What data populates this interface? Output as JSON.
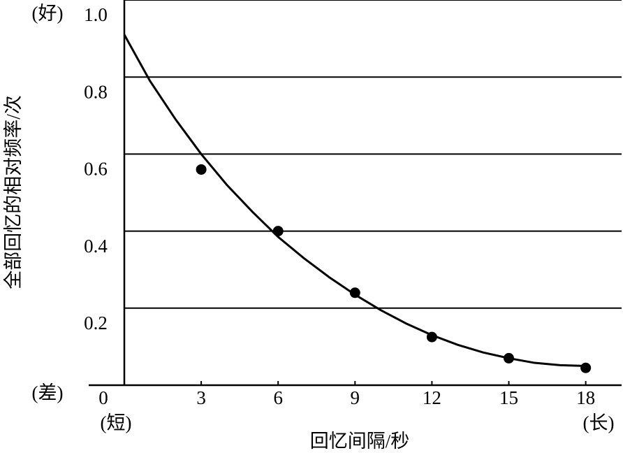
{
  "chart_data": {
    "type": "scatter",
    "xlabel": "回忆间隔/秒",
    "ylabel": "全部回忆的相对频率/次",
    "annotations": {
      "y_high": "(好)",
      "y_low": "(差)",
      "x_low": "(短)",
      "x_high": "(长)"
    },
    "x": [
      3,
      6,
      9,
      12,
      15,
      18
    ],
    "values": [
      0.56,
      0.4,
      0.24,
      0.125,
      0.07,
      0.045
    ],
    "color": "#000000",
    "curve": {
      "x": [
        0,
        1,
        2,
        3,
        4,
        5,
        6,
        7,
        8,
        9,
        10,
        11,
        12,
        13,
        14,
        15,
        16,
        17,
        18
      ],
      "values": [
        0.91,
        0.79,
        0.69,
        0.6,
        0.52,
        0.45,
        0.385,
        0.33,
        0.28,
        0.235,
        0.195,
        0.16,
        0.13,
        0.105,
        0.085,
        0.07,
        0.058,
        0.052,
        0.05
      ]
    },
    "xlim": [
      0,
      19.4
    ],
    "ylim": [
      0,
      1
    ],
    "xticks": [
      0,
      3,
      6,
      9,
      12,
      15,
      18
    ],
    "yticks": [
      0.2,
      0.4,
      0.6,
      0.8,
      {
        "value": 1,
        "label": "1.0"
      }
    ],
    "grid": true
  }
}
